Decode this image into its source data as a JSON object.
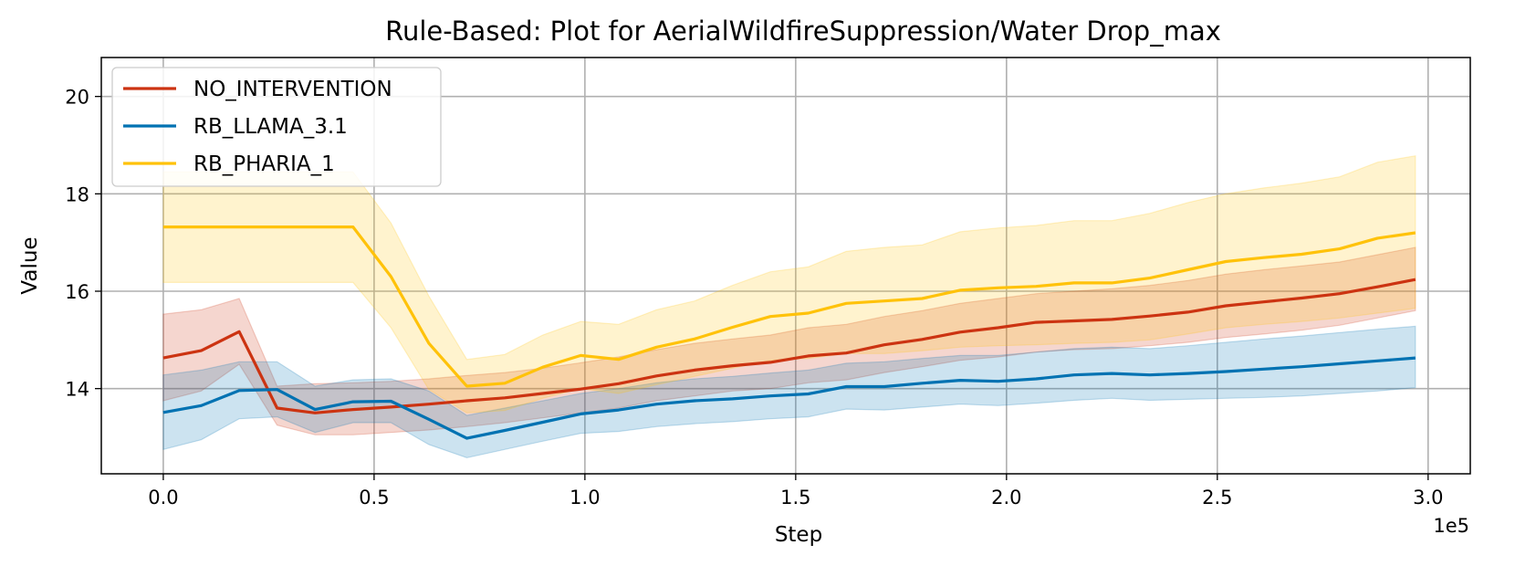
{
  "chart_data": {
    "type": "line",
    "title": "Rule-Based: Plot for AerialWildfireSuppression/Water Drop_max",
    "xlabel": "Step",
    "ylabel": "Value",
    "x_offset_label": "1e5",
    "xlim": [
      -0.147,
      3.1
    ],
    "ylim": [
      12.25,
      20.8
    ],
    "grid": true,
    "legend_position": "top-left",
    "xticks": [
      0.0,
      0.5,
      1.0,
      1.5,
      2.0,
      2.5,
      3.0
    ],
    "xtick_labels": [
      "0.0",
      "0.5",
      "1.0",
      "1.5",
      "2.0",
      "2.5",
      "3.0"
    ],
    "yticks": [
      14,
      16,
      18,
      20
    ],
    "ytick_labels": [
      "14",
      "16",
      "18",
      "20"
    ],
    "x": [
      0.0,
      0.09,
      0.18,
      0.27,
      0.36,
      0.45,
      0.54,
      0.63,
      0.72,
      0.81,
      0.9,
      0.99,
      1.08,
      1.17,
      1.26,
      1.35,
      1.44,
      1.53,
      1.62,
      1.71,
      1.8,
      1.89,
      1.98,
      2.07,
      2.16,
      2.25,
      2.34,
      2.43,
      2.52,
      2.61,
      2.7,
      2.79,
      2.88,
      2.97
    ],
    "series": [
      {
        "name": "NO_INTERVENTION",
        "color": "#cc3311",
        "values": [
          14.63,
          14.78,
          15.17,
          13.6,
          13.5,
          13.57,
          13.62,
          13.68,
          13.75,
          13.81,
          13.9,
          13.99,
          14.1,
          14.26,
          14.38,
          14.47,
          14.54,
          14.67,
          14.73,
          14.9,
          15.01,
          15.16,
          15.25,
          15.36,
          15.39,
          15.42,
          15.49,
          15.57,
          15.7,
          15.78,
          15.86,
          15.95,
          16.09,
          16.24
        ],
        "upper": [
          15.53,
          15.62,
          15.85,
          14.05,
          14.1,
          14.12,
          14.15,
          14.2,
          14.27,
          14.33,
          14.42,
          14.53,
          14.65,
          14.8,
          14.93,
          15.02,
          15.1,
          15.25,
          15.32,
          15.48,
          15.6,
          15.75,
          15.85,
          15.95,
          16.0,
          16.05,
          16.12,
          16.22,
          16.35,
          16.44,
          16.52,
          16.6,
          16.75,
          16.9
        ],
        "lower": [
          13.75,
          13.95,
          14.5,
          13.25,
          13.05,
          13.05,
          13.1,
          13.15,
          13.22,
          13.3,
          13.4,
          13.5,
          13.6,
          13.75,
          13.85,
          13.95,
          14.0,
          14.12,
          14.18,
          14.33,
          14.45,
          14.58,
          14.65,
          14.75,
          14.8,
          14.82,
          14.88,
          14.95,
          15.05,
          15.12,
          15.2,
          15.3,
          15.45,
          15.6
        ]
      },
      {
        "name": "RB_LLAMA_3.1",
        "color": "#0072b2",
        "values": [
          13.51,
          13.65,
          13.96,
          13.98,
          13.57,
          13.73,
          13.74,
          13.37,
          12.98,
          13.14,
          13.31,
          13.48,
          13.56,
          13.68,
          13.75,
          13.79,
          13.85,
          13.89,
          14.04,
          14.04,
          14.11,
          14.17,
          14.15,
          14.2,
          14.28,
          14.31,
          14.28,
          14.31,
          14.35,
          14.4,
          14.45,
          14.51,
          14.57,
          14.63
        ],
        "upper": [
          14.28,
          14.38,
          14.55,
          14.55,
          14.05,
          14.18,
          14.2,
          13.95,
          13.45,
          13.6,
          13.75,
          13.9,
          14.0,
          14.12,
          14.2,
          14.25,
          14.32,
          14.38,
          14.52,
          14.55,
          14.62,
          14.68,
          14.68,
          14.75,
          14.82,
          14.85,
          14.82,
          14.88,
          14.95,
          15.02,
          15.08,
          15.15,
          15.22,
          15.28
        ],
        "lower": [
          12.75,
          12.95,
          13.38,
          13.42,
          13.1,
          13.3,
          13.3,
          12.85,
          12.58,
          12.75,
          12.92,
          13.08,
          13.12,
          13.22,
          13.28,
          13.32,
          13.38,
          13.42,
          13.58,
          13.56,
          13.62,
          13.68,
          13.65,
          13.7,
          13.76,
          13.8,
          13.76,
          13.78,
          13.8,
          13.82,
          13.85,
          13.9,
          13.95,
          14.02
        ]
      },
      {
        "name": "RB_PHARIA_1",
        "color": "#ffc20a",
        "values": [
          17.32,
          17.32,
          17.32,
          17.32,
          17.32,
          17.32,
          16.3,
          14.93,
          14.05,
          14.11,
          14.44,
          14.68,
          14.6,
          14.85,
          15.02,
          15.26,
          15.48,
          15.55,
          15.75,
          15.8,
          15.85,
          16.02,
          16.07,
          16.1,
          16.17,
          16.17,
          16.27,
          16.44,
          16.61,
          16.69,
          16.76,
          16.87,
          17.09,
          17.2
        ],
        "upper": [
          18.45,
          18.45,
          18.45,
          18.45,
          18.45,
          18.45,
          17.4,
          15.9,
          14.6,
          14.7,
          15.1,
          15.38,
          15.32,
          15.62,
          15.8,
          16.12,
          16.4,
          16.5,
          16.82,
          16.9,
          16.95,
          17.22,
          17.3,
          17.35,
          17.45,
          17.45,
          17.6,
          17.82,
          18.0,
          18.12,
          18.22,
          18.35,
          18.65,
          18.78
        ],
        "lower": [
          16.18,
          16.18,
          16.18,
          16.18,
          16.18,
          16.18,
          15.25,
          13.98,
          13.5,
          13.55,
          13.8,
          14.0,
          13.9,
          14.08,
          14.25,
          14.42,
          14.58,
          14.62,
          14.72,
          14.72,
          14.78,
          14.85,
          14.88,
          14.9,
          14.93,
          14.95,
          15.0,
          15.12,
          15.25,
          15.32,
          15.38,
          15.45,
          15.55,
          15.65
        ]
      }
    ]
  }
}
